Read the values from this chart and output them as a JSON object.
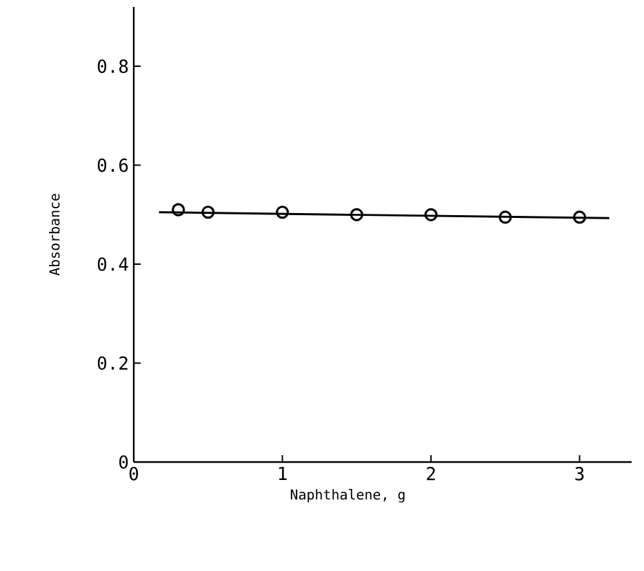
{
  "chart_data": {
    "type": "scatter",
    "xlabel": "Naphthalene, g",
    "ylabel": "Absorbance",
    "xlim": [
      0,
      3.35
    ],
    "ylim": [
      0,
      0.92
    ],
    "xticks": [
      0,
      1,
      2,
      3
    ],
    "yticks": [
      0,
      0.2,
      0.4,
      0.6,
      0.8
    ],
    "grid": false,
    "marker": "circle",
    "series": [
      {
        "color": "#000000",
        "x": [
          0.3,
          0.5,
          1.0,
          1.5,
          2.0,
          2.5,
          3.0
        ],
        "values": [
          0.51,
          0.505,
          0.505,
          0.5,
          0.5,
          0.495,
          0.495
        ]
      },
      {
        "type": "line",
        "color": "#000000",
        "line_style": "solid",
        "marker": "none",
        "x": [
          0.17,
          3.2
        ],
        "values": [
          0.505,
          0.493
        ]
      }
    ]
  }
}
